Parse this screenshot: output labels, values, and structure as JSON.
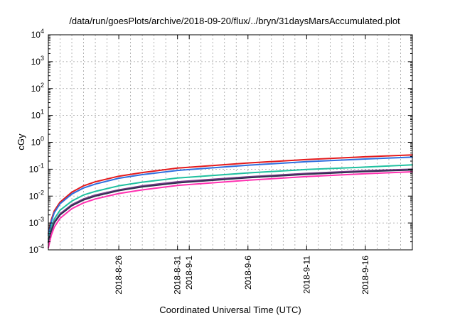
{
  "chart_data": {
    "type": "line",
    "title": "/data/run/goesPlots/archive/2018-09-20/flux/../bryn/31daysMarsAccumulated.plot",
    "xlabel": "Coordinated Universal Time (UTC)",
    "ylabel": "cGy",
    "yscale": "log",
    "ylim": [
      0.0001,
      10000
    ],
    "xlim": [
      "2018-08-20",
      "2018-09-20"
    ],
    "grid": true,
    "legend": "none",
    "y_ticks": [
      {
        "value": 0.0001,
        "base": "10",
        "exp": "-4"
      },
      {
        "value": 0.001,
        "base": "10",
        "exp": "-3"
      },
      {
        "value": 0.01,
        "base": "10",
        "exp": "-2"
      },
      {
        "value": 0.1,
        "base": "10",
        "exp": "-1"
      },
      {
        "value": 1,
        "base": "10",
        "exp": "0"
      },
      {
        "value": 10,
        "base": "10",
        "exp": "1"
      },
      {
        "value": 100,
        "base": "10",
        "exp": "2"
      },
      {
        "value": 1000,
        "base": "10",
        "exp": "3"
      },
      {
        "value": 10000,
        "base": "10",
        "exp": "4"
      }
    ],
    "x_ticks": [
      {
        "date": "2018-08-26",
        "label": "2018-8-26"
      },
      {
        "date": "2018-08-31",
        "label": "2018-8-31"
      },
      {
        "date": "2018-09-01",
        "label": "2018-9-1"
      },
      {
        "date": "2018-09-06",
        "label": "2018-9-6"
      },
      {
        "date": "2018-09-11",
        "label": "2018-9-11"
      },
      {
        "date": "2018-09-16",
        "label": "2018-9-16"
      }
    ],
    "series": [
      {
        "color": "#e41a1c",
        "x": [
          "2018-08-20",
          "2018-08-20T06:00",
          "2018-08-20T12:00",
          "2018-08-21",
          "2018-08-22",
          "2018-08-23",
          "2018-08-24",
          "2018-08-26",
          "2018-08-28",
          "2018-08-31",
          "2018-09-06",
          "2018-09-11",
          "2018-09-16",
          "2018-09-20"
        ],
        "y": [
          0.0004,
          0.0013,
          0.0028,
          0.006,
          0.014,
          0.024,
          0.034,
          0.055,
          0.075,
          0.11,
          0.17,
          0.23,
          0.29,
          0.34
        ]
      },
      {
        "color": "#2f6fdf",
        "x": [
          "2018-08-20",
          "2018-08-20T06:00",
          "2018-08-20T12:00",
          "2018-08-21",
          "2018-08-22",
          "2018-08-23",
          "2018-08-24",
          "2018-08-26",
          "2018-08-28",
          "2018-08-31",
          "2018-09-06",
          "2018-09-11",
          "2018-09-16",
          "2018-09-20"
        ],
        "y": [
          0.00035,
          0.0011,
          0.0024,
          0.0052,
          0.012,
          0.02,
          0.028,
          0.046,
          0.063,
          0.09,
          0.14,
          0.19,
          0.24,
          0.28
        ]
      },
      {
        "color": "#1fc0a0",
        "x": [
          "2018-08-20",
          "2018-08-20T06:00",
          "2018-08-20T12:00",
          "2018-08-21",
          "2018-08-22",
          "2018-08-23",
          "2018-08-24",
          "2018-08-26",
          "2018-08-28",
          "2018-08-31",
          "2018-09-06",
          "2018-09-11",
          "2018-09-16",
          "2018-09-20"
        ],
        "y": [
          0.00025,
          0.0007,
          0.0014,
          0.003,
          0.0065,
          0.011,
          0.015,
          0.024,
          0.033,
          0.047,
          0.073,
          0.098,
          0.12,
          0.145
        ]
      },
      {
        "color": "#7a3d8a",
        "x": [
          "2018-08-20",
          "2018-08-20T06:00",
          "2018-08-20T12:00",
          "2018-08-21",
          "2018-08-22",
          "2018-08-23",
          "2018-08-24",
          "2018-08-26",
          "2018-08-28",
          "2018-08-31",
          "2018-09-06",
          "2018-09-11",
          "2018-09-16",
          "2018-09-20"
        ],
        "y": [
          0.0002,
          0.00055,
          0.0011,
          0.0022,
          0.0048,
          0.0078,
          0.011,
          0.017,
          0.024,
          0.034,
          0.052,
          0.07,
          0.088,
          0.1
        ]
      },
      {
        "color": "#303050",
        "x": [
          "2018-08-20",
          "2018-08-20T06:00",
          "2018-08-20T12:00",
          "2018-08-21",
          "2018-08-22",
          "2018-08-23",
          "2018-08-24",
          "2018-08-26",
          "2018-08-28",
          "2018-08-31",
          "2018-09-06",
          "2018-09-11",
          "2018-09-16",
          "2018-09-20"
        ],
        "y": [
          0.00019,
          0.0005,
          0.001,
          0.002,
          0.0044,
          0.0072,
          0.01,
          0.016,
          0.022,
          0.031,
          0.048,
          0.065,
          0.082,
          0.094
        ]
      },
      {
        "color": "#ff30b0",
        "x": [
          "2018-08-20",
          "2018-08-20T06:00",
          "2018-08-20T12:00",
          "2018-08-21",
          "2018-08-22",
          "2018-08-23",
          "2018-08-24",
          "2018-08-26",
          "2018-08-28",
          "2018-08-31",
          "2018-09-06",
          "2018-09-11",
          "2018-09-16",
          "2018-09-20"
        ],
        "y": [
          0.00012,
          0.00035,
          0.0007,
          0.0015,
          0.0034,
          0.0056,
          0.0078,
          0.0125,
          0.017,
          0.025,
          0.039,
          0.053,
          0.068,
          0.08
        ]
      }
    ]
  }
}
